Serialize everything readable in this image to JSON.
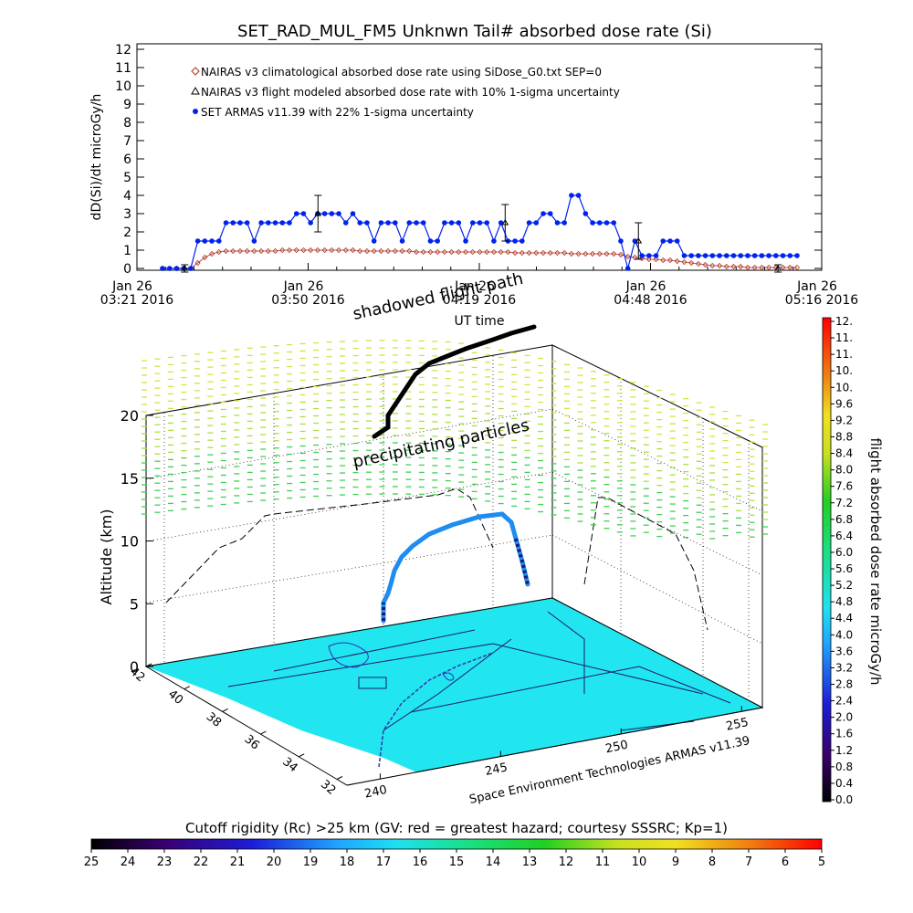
{
  "top_chart": {
    "title": "SET_RAD_MUL_FM5 Unknwn Tail#  absorbed dose rate (Si)",
    "ylabel": "dD(Si)/dt microGy/h",
    "xlabel": "UT time",
    "yticks": [
      "0",
      "1",
      "2",
      "3",
      "4",
      "5",
      "6",
      "7",
      "8",
      "9",
      "10",
      "11",
      "12"
    ],
    "xticks": [
      {
        "date": "Jan 26",
        "time": "03:21 2016"
      },
      {
        "date": "Jan 26",
        "time": "03:50 2016"
      },
      {
        "date": "Jan 26",
        "time": "04:19 2016"
      },
      {
        "date": "Jan 26",
        "time": "04:48 2016"
      },
      {
        "date": "Jan 26",
        "time": "05:16 2016"
      }
    ],
    "legend": [
      "NAIRAS v3 climatological absorbed dose rate using SiDose_G0.txt SEP=0",
      "NAIRAS v3 flight modeled absorbed dose rate with 10% 1-sigma uncertainty",
      "SET ARMAS v11.39 with 22% 1-sigma uncertainty"
    ],
    "colors": {
      "armas": "#0022ee",
      "nairas": "#b03020",
      "black": "#000000"
    }
  },
  "chart_data": [
    {
      "type": "line",
      "title": "SET_RAD_MUL_FM5 Unknwn Tail#  absorbed dose rate (Si)",
      "xlabel": "UT time",
      "ylabel": "dD(Si)/dt microGy/h",
      "ylim": [
        0,
        12
      ],
      "xlim_minutes_labels": [
        "03:21",
        "05:16"
      ],
      "series": [
        {
          "name": "SET ARMAS v11.39 with 22% 1-sigma uncertainty",
          "values": [
            0,
            0,
            0,
            0,
            0,
            1.5,
            1.5,
            1.5,
            1.5,
            2.5,
            2.5,
            2.5,
            2.5,
            1.5,
            2.5,
            2.5,
            2.5,
            2.5,
            2.5,
            3,
            3,
            2.5,
            3,
            3,
            3,
            3,
            2.5,
            3,
            2.5,
            2.5,
            1.5,
            2.5,
            2.5,
            2.5,
            1.5,
            2.5,
            2.5,
            2.5,
            1.5,
            1.5,
            2.5,
            2.5,
            2.5,
            1.5,
            2.5,
            2.5,
            2.5,
            1.5,
            2.5,
            1.5,
            1.5,
            1.5,
            2.5,
            2.5,
            3,
            3,
            2.5,
            2.5,
            4,
            4,
            3,
            2.5,
            2.5,
            2.5,
            2.5,
            1.5,
            0,
            1.5,
            0.7,
            0.7,
            0.7,
            1.5,
            1.5,
            1.5,
            0.7,
            0.7,
            0.7,
            0.7,
            0.7,
            0.7,
            0.7,
            0.7,
            0.7,
            0.7,
            0.7,
            0.7,
            0.7,
            0.7,
            0.7,
            0.7,
            0.7
          ]
        },
        {
          "name": "NAIRAS v3 climatological absorbed dose rate using SiDose_G0.txt SEP=0",
          "values": [
            0,
            0,
            0,
            0,
            0,
            0.3,
            0.6,
            0.8,
            0.9,
            0.95,
            0.95,
            0.95,
            0.95,
            0.95,
            0.95,
            0.95,
            0.95,
            1,
            1,
            1,
            1,
            1,
            1,
            1,
            1,
            1,
            1,
            1,
            0.95,
            0.95,
            0.95,
            0.95,
            0.95,
            0.95,
            0.95,
            0.95,
            0.9,
            0.9,
            0.9,
            0.9,
            0.9,
            0.9,
            0.9,
            0.9,
            0.9,
            0.9,
            0.9,
            0.9,
            0.9,
            0.9,
            0.85,
            0.85,
            0.85,
            0.85,
            0.85,
            0.85,
            0.85,
            0.85,
            0.8,
            0.8,
            0.8,
            0.8,
            0.8,
            0.8,
            0.8,
            0.75,
            0.65,
            0.6,
            0.55,
            0.5,
            0.5,
            0.45,
            0.45,
            0.4,
            0.35,
            0.3,
            0.25,
            0.2,
            0.15,
            0.15,
            0.1,
            0.1,
            0.1,
            0.05,
            0.05,
            0.05,
            0.05,
            0.05,
            0.05,
            0.05,
            0.05
          ]
        },
        {
          "name": "NAIRAS v3 flight modeled absorbed dose rate with 10% 1-sigma uncertainty",
          "points": [
            [
              0.035,
              0
            ],
            [
              0.245,
              3
            ],
            [
              0.54,
              2.5
            ],
            [
              0.75,
              1.5
            ],
            [
              0.97,
              0
            ]
          ],
          "err": [
            0.1,
            0.5,
            0.5,
            0.5,
            0.1
          ]
        }
      ]
    },
    {
      "type": "scatter",
      "title": "",
      "zlabel": "Altitude (km)",
      "zticks": [
        "0",
        "5",
        "10",
        "15",
        "20"
      ],
      "lat_ticks": [
        "42",
        "40",
        "38",
        "36",
        "34",
        "32"
      ],
      "lon_ticks": [
        "240",
        "245",
        "250",
        "255"
      ],
      "annotations": [
        "shadowed flight path",
        "precipitating particles"
      ],
      "credit": "Space Environment Technologies ARMAS v11.39"
    }
  ],
  "right_colorbar": {
    "label": "flight absorbed dose rate microGy/h",
    "ticks": [
      "0.0",
      "0.4",
      "0.8",
      "1.2",
      "1.6",
      "2.0",
      "2.4",
      "2.8",
      "3.2",
      "3.6",
      "4.0",
      "4.4",
      "4.8",
      "5.2",
      "5.6",
      "6.0",
      "6.4",
      "6.8",
      "7.2",
      "7.6",
      "8.0",
      "8.4",
      "8.8",
      "9.2",
      "9.6",
      "10.",
      "10.",
      "11.",
      "11.",
      "12."
    ]
  },
  "bottom_colorbar": {
    "label": "Cutoff rigidity (Rc) >25 km (GV: red = greatest hazard; courtesy SSSRC; Kp=1)",
    "ticks": [
      "25",
      "24",
      "23",
      "22",
      "21",
      "20",
      "19",
      "18",
      "17",
      "16",
      "15",
      "14",
      "13",
      "12",
      "11",
      "10",
      "9",
      "8",
      "7",
      "6",
      "5"
    ]
  }
}
